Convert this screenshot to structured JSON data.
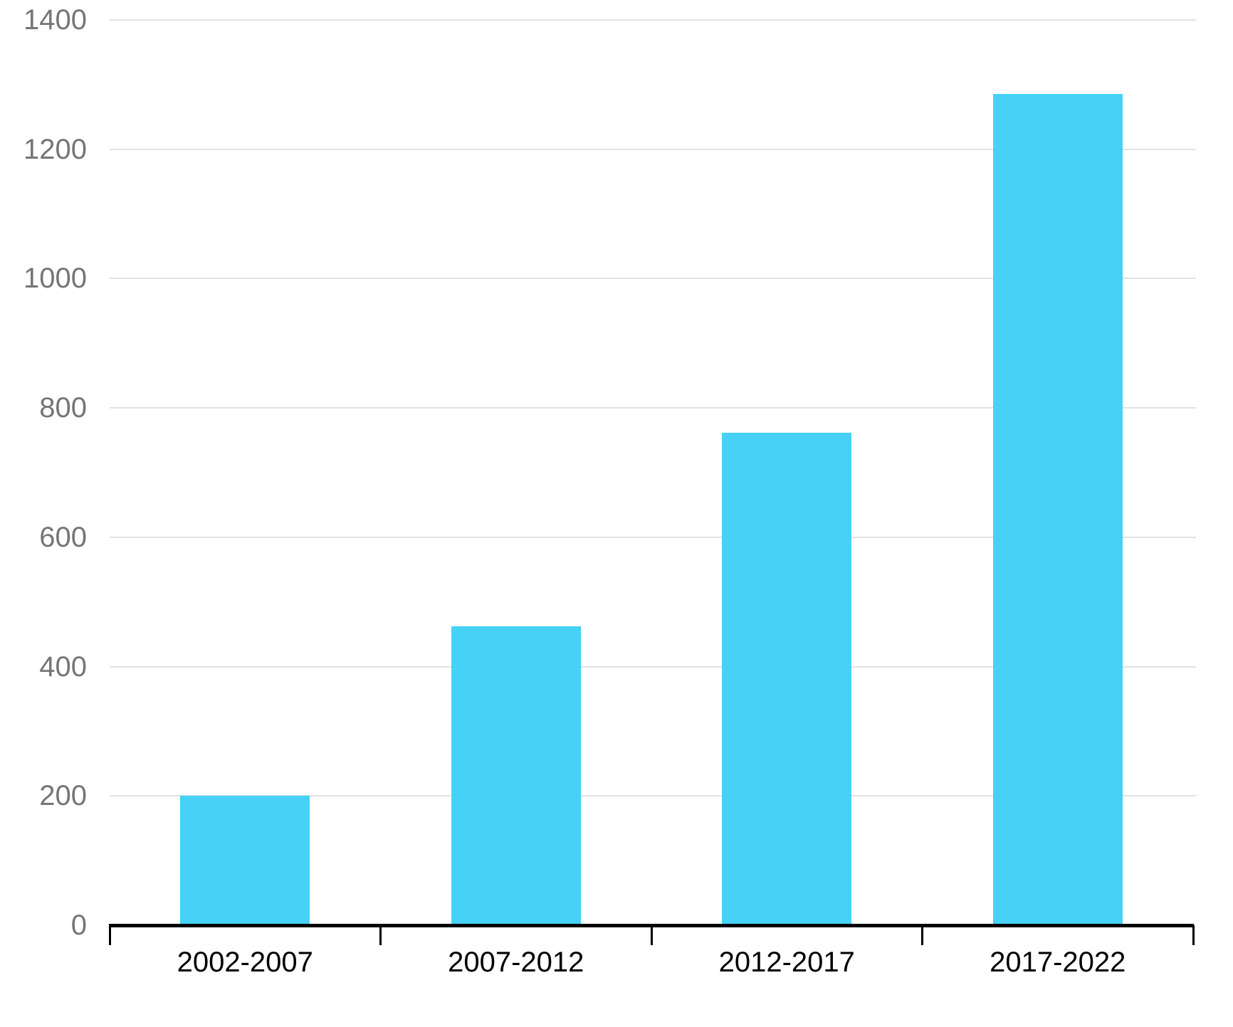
{
  "chart_data": {
    "type": "bar",
    "title": "",
    "xlabel": "",
    "ylabel": "",
    "categories": [
      "2002-2007",
      "2007-2012",
      "2012-2017",
      "2017-2022"
    ],
    "values": [
      200,
      462,
      762,
      1285
    ],
    "ylim": [
      0,
      1400
    ],
    "yticks": [
      0,
      200,
      400,
      600,
      800,
      1000,
      1200,
      1400
    ],
    "grid": true,
    "legend": false,
    "colors": {
      "bar": "#47D1F7",
      "gridline": "#E2E2E2",
      "axis": "#000000",
      "ytick_label": "#757575",
      "xtick_label": "#000000",
      "background": "#FFFFFF"
    }
  }
}
